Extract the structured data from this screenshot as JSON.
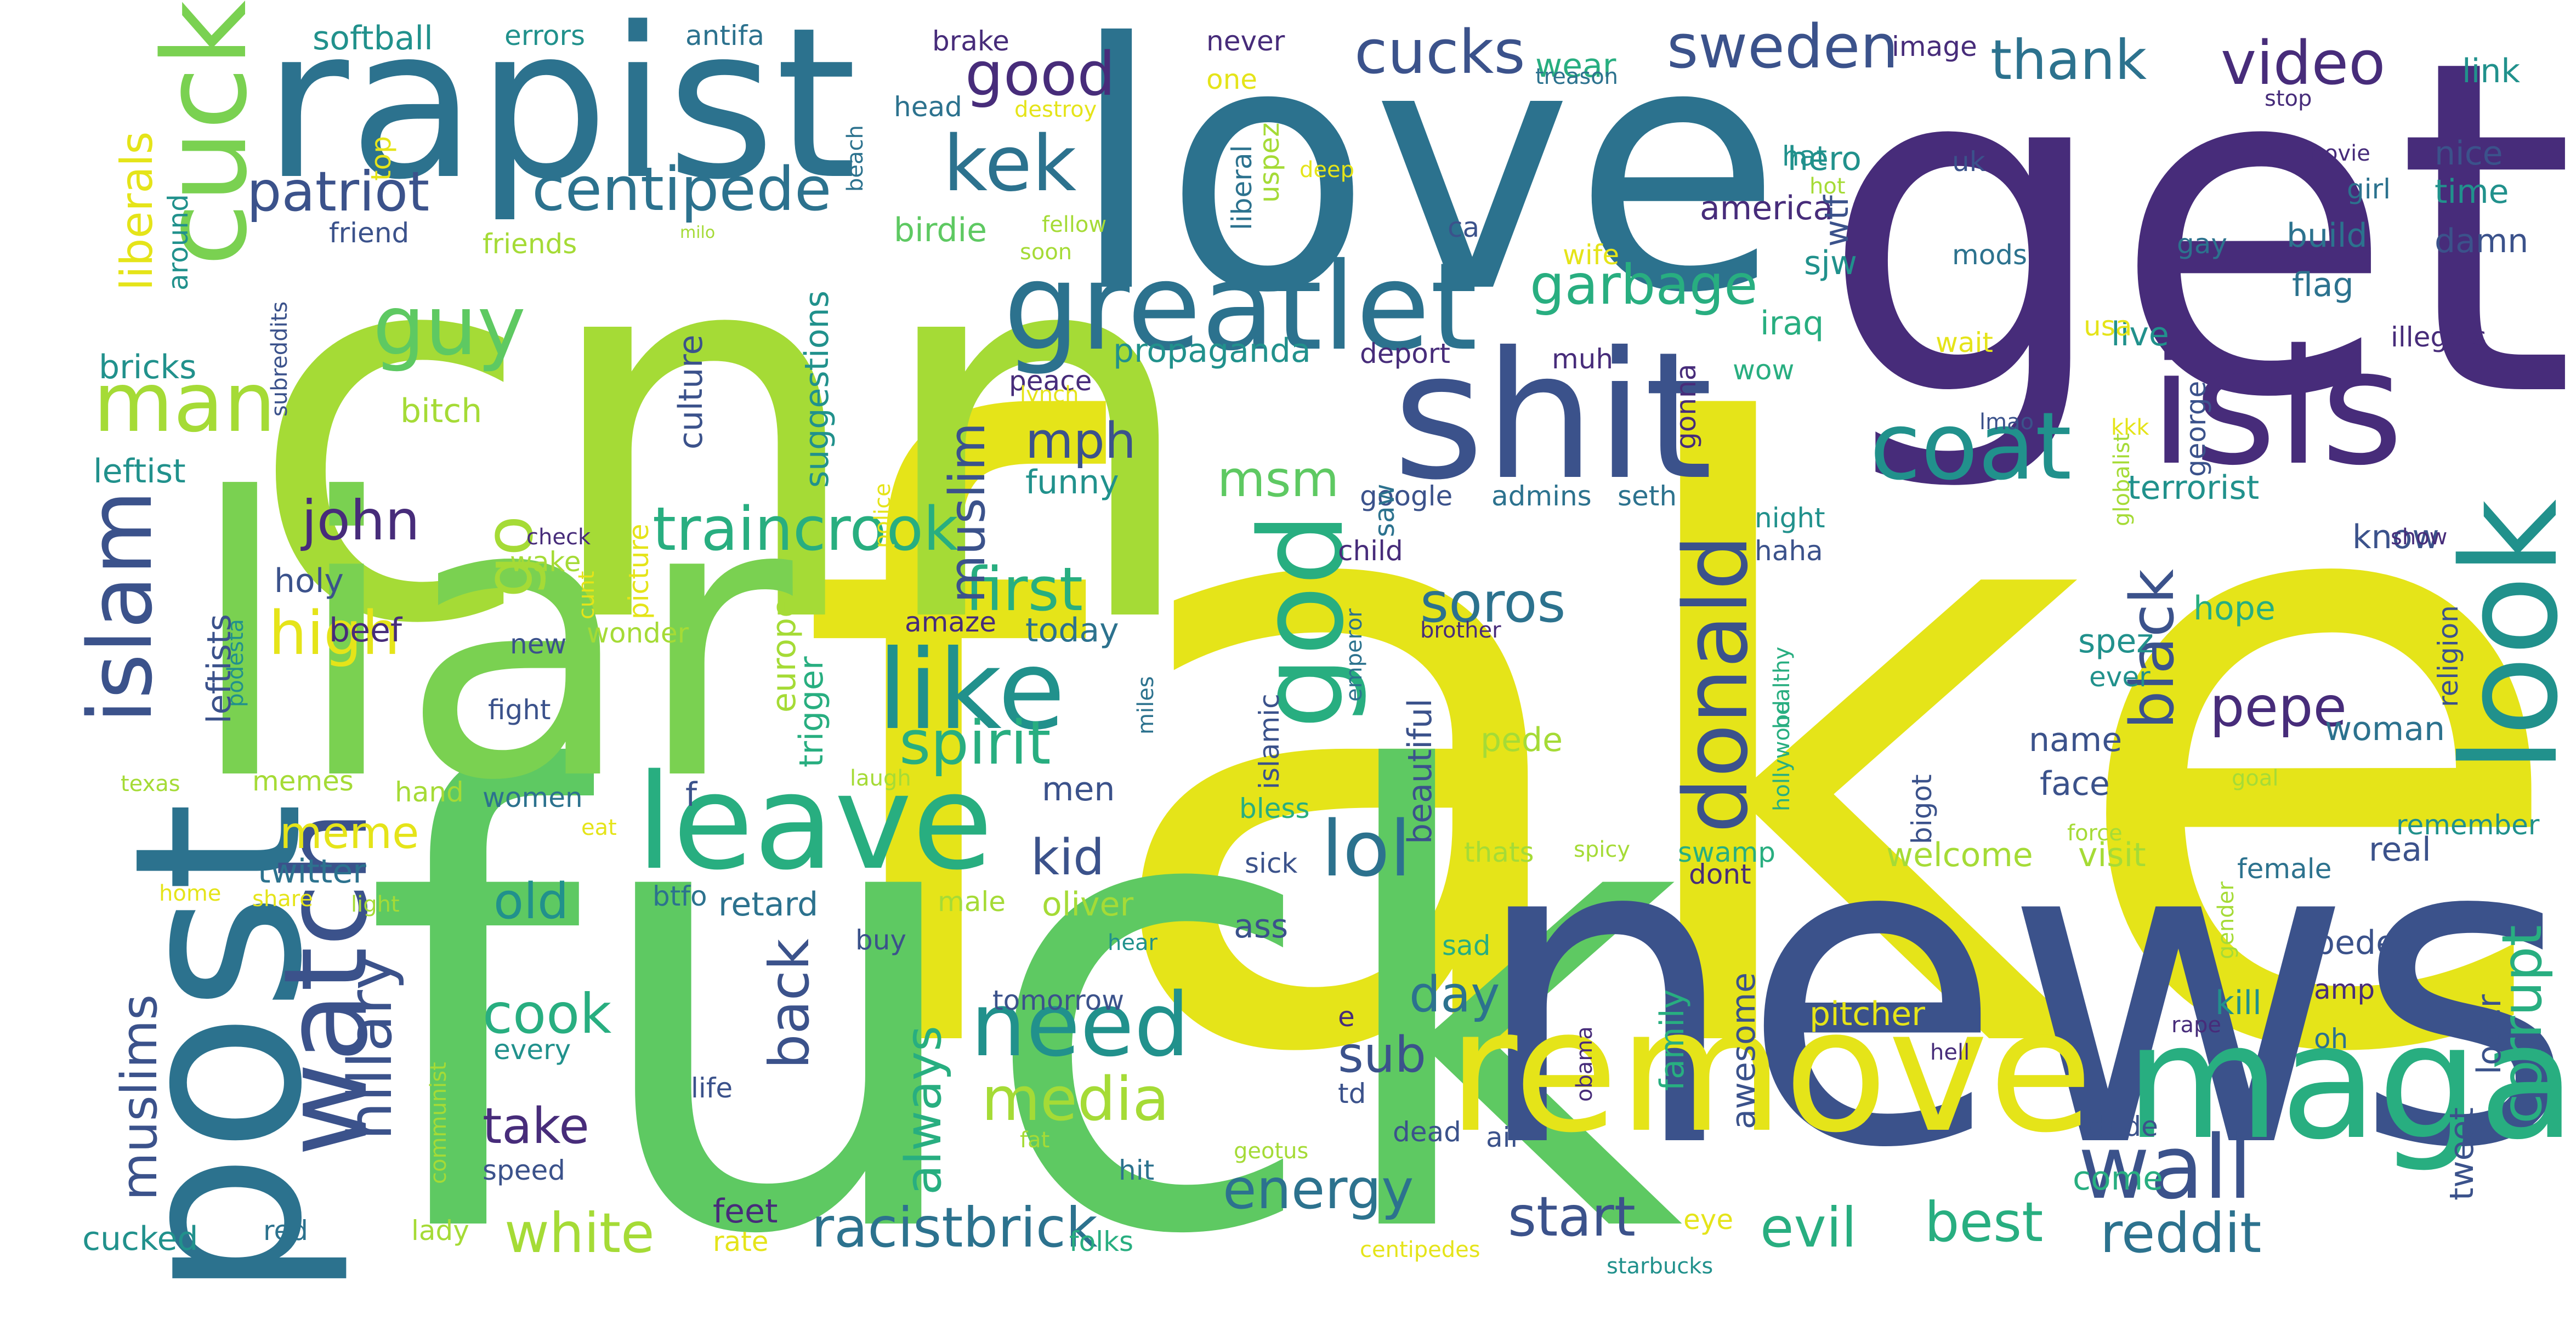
{
  "palette": {
    "dark_purple": "#472c7a",
    "indigo": "#3b528b",
    "blue_teal": "#2c728e",
    "teal": "#21918c",
    "green_teal": "#28ae80",
    "green": "#5ec962",
    "lime_green": "#7ad151",
    "yellow_green": "#a5db36",
    "yellow": "#e5e419"
  },
  "words": [
    {
      "text": "fake",
      "color": "#e5e419"
    },
    {
      "text": "fuck",
      "color": "#5ec962"
    },
    {
      "text": "cnn",
      "color": "#a5db36"
    },
    {
      "text": "get",
      "color": "#472c7a"
    },
    {
      "text": "news",
      "color": "#3b528b"
    },
    {
      "text": "love",
      "color": "#2c728e"
    },
    {
      "text": "liar",
      "color": "#7ad151"
    },
    {
      "text": "rapist",
      "color": "#2c728e"
    },
    {
      "text": "post",
      "color": "#2c728e"
    },
    {
      "text": "remove",
      "color": "#e5e419"
    },
    {
      "text": "maga",
      "color": "#28ae80"
    },
    {
      "text": "shit",
      "color": "#3b528b"
    },
    {
      "text": "isis",
      "color": "#472c7a"
    },
    {
      "text": "cuck",
      "color": "#7ad151"
    },
    {
      "text": "greatlet",
      "color": "#2c728e"
    },
    {
      "text": "leave",
      "color": "#28ae80"
    },
    {
      "text": "look",
      "color": "#21918c"
    },
    {
      "text": "god",
      "color": "#28ae80"
    },
    {
      "text": "wall",
      "color": "#3b528b"
    },
    {
      "text": "coat",
      "color": "#21918c"
    },
    {
      "text": "need",
      "color": "#21918c"
    },
    {
      "text": "watch",
      "color": "#3b528b"
    },
    {
      "text": "like",
      "color": "#21918c"
    },
    {
      "text": "donald",
      "color": "#3b528b"
    },
    {
      "text": "man",
      "color": "#a5db36"
    },
    {
      "text": "guy",
      "color": "#5ec962"
    },
    {
      "text": "islam",
      "color": "#3b528b"
    },
    {
      "text": "kek",
      "color": "#2c728e"
    },
    {
      "text": "lol",
      "color": "#2c728e"
    },
    {
      "text": "patriot",
      "color": "#3b528b"
    },
    {
      "text": "centipede",
      "color": "#2c728e"
    },
    {
      "text": "good",
      "color": "#472c7a"
    },
    {
      "text": "cucks",
      "color": "#3b528b"
    },
    {
      "text": "sweden",
      "color": "#3b528b"
    },
    {
      "text": "thank",
      "color": "#2c728e"
    },
    {
      "text": "video",
      "color": "#472c7a"
    },
    {
      "text": "garbage",
      "color": "#28ae80"
    },
    {
      "text": "high",
      "color": "#e5e419"
    },
    {
      "text": "go",
      "color": "#a5db36"
    },
    {
      "text": "john",
      "color": "#472c7a"
    },
    {
      "text": "traincrook",
      "color": "#28ae80"
    },
    {
      "text": "first",
      "color": "#28ae80"
    },
    {
      "text": "spirit",
      "color": "#28ae80"
    },
    {
      "text": "hillary",
      "color": "#3b528b"
    },
    {
      "text": "media",
      "color": "#a5db36"
    },
    {
      "text": "energy",
      "color": "#2c728e"
    },
    {
      "text": "racistbrick",
      "color": "#2c728e"
    },
    {
      "text": "white",
      "color": "#a5db36"
    },
    {
      "text": "evil",
      "color": "#28ae80"
    },
    {
      "text": "best",
      "color": "#28ae80"
    },
    {
      "text": "start",
      "color": "#3b528b"
    },
    {
      "text": "reddit",
      "color": "#2c728e"
    },
    {
      "text": "corrupt",
      "color": "#28ae80"
    },
    {
      "text": "black",
      "color": "#3b528b"
    },
    {
      "text": "pepe",
      "color": "#472c7a"
    },
    {
      "text": "soros",
      "color": "#2c728e"
    },
    {
      "text": "muslim",
      "color": "#3b528b"
    },
    {
      "text": "mph",
      "color": "#3b528b"
    },
    {
      "text": "msm",
      "color": "#5ec962"
    },
    {
      "text": "muslims",
      "color": "#3b528b"
    },
    {
      "text": "cook",
      "color": "#28ae80"
    },
    {
      "text": "take",
      "color": "#472c7a"
    },
    {
      "text": "back",
      "color": "#3b528b"
    },
    {
      "text": "always",
      "color": "#28ae80"
    },
    {
      "text": "kid",
      "color": "#3b528b"
    },
    {
      "text": "day",
      "color": "#2c728e"
    },
    {
      "text": "sub",
      "color": "#3b528b"
    },
    {
      "text": "meme",
      "color": "#e5e419"
    },
    {
      "text": "old",
      "color": "#21918c"
    },
    {
      "text": "liberals",
      "color": "#e5e419"
    },
    {
      "text": "bricks",
      "color": "#21918c"
    },
    {
      "text": "leftist",
      "color": "#21918c"
    },
    {
      "text": "holy",
      "color": "#3b528b"
    },
    {
      "text": "beef",
      "color": "#472c7a"
    },
    {
      "text": "culture",
      "color": "#3b528b"
    },
    {
      "text": "suggestions",
      "color": "#21918c"
    },
    {
      "text": "propaganda",
      "color": "#21918c"
    },
    {
      "text": "funny",
      "color": "#21918c"
    },
    {
      "text": "today",
      "color": "#2c728e"
    },
    {
      "text": "europe",
      "color": "#a5db36"
    },
    {
      "text": "trigger",
      "color": "#28ae80"
    },
    {
      "text": "birdie",
      "color": "#5ec962"
    },
    {
      "text": "america",
      "color": "#472c7a"
    },
    {
      "text": "wtf",
      "color": "#3b528b"
    },
    {
      "text": "hero",
      "color": "#21918c"
    },
    {
      "text": "hat",
      "color": "#21918c"
    },
    {
      "text": "sjw",
      "color": "#21918c"
    },
    {
      "text": "iraq",
      "color": "#28ae80"
    },
    {
      "text": "wow",
      "color": "#28ae80"
    },
    {
      "text": "build",
      "color": "#2c728e"
    },
    {
      "text": "flag",
      "color": "#2c728e"
    },
    {
      "text": "live",
      "color": "#21918c"
    },
    {
      "text": "illegals",
      "color": "#472c7a"
    },
    {
      "text": "terrorist",
      "color": "#21918c"
    },
    {
      "text": "know",
      "color": "#3b528b"
    },
    {
      "text": "hope",
      "color": "#28ae80"
    },
    {
      "text": "spez",
      "color": "#21918c"
    },
    {
      "text": "ever",
      "color": "#21918c"
    },
    {
      "text": "woman",
      "color": "#2c728e"
    },
    {
      "text": "name",
      "color": "#3b528b"
    },
    {
      "text": "face",
      "color": "#3b528b"
    },
    {
      "text": "pede",
      "color": "#a5db36"
    },
    {
      "text": "welcome",
      "color": "#a5db36"
    },
    {
      "text": "visit",
      "color": "#a5db36"
    },
    {
      "text": "real",
      "color": "#3b528b"
    },
    {
      "text": "pedes",
      "color": "#3b528b"
    },
    {
      "text": "kill",
      "color": "#21918c"
    },
    {
      "text": "pitcher",
      "color": "#e5e419"
    },
    {
      "text": "swamp",
      "color": "#28ae80"
    },
    {
      "text": "awesome",
      "color": "#3b528b"
    },
    {
      "text": "family",
      "color": "#28ae80"
    },
    {
      "text": "beautiful",
      "color": "#3b528b"
    },
    {
      "text": "twitter",
      "color": "#2c728e"
    },
    {
      "text": "women",
      "color": "#2c728e"
    },
    {
      "text": "hand",
      "color": "#a5db36"
    },
    {
      "text": "men",
      "color": "#3b528b"
    },
    {
      "text": "male",
      "color": "#a5db36"
    },
    {
      "text": "oliver",
      "color": "#a5db36"
    },
    {
      "text": "retard",
      "color": "#2c728e"
    },
    {
      "text": "btfo",
      "color": "#2c728e"
    },
    {
      "text": "buy",
      "color": "#3b528b"
    },
    {
      "text": "life",
      "color": "#3b528b"
    },
    {
      "text": "tomorrow",
      "color": "#3b528b"
    },
    {
      "text": "feet",
      "color": "#472c7a"
    },
    {
      "text": "folks",
      "color": "#28ae80"
    },
    {
      "text": "speed",
      "color": "#3b528b"
    },
    {
      "text": "every",
      "color": "#21918c"
    },
    {
      "text": "cucked",
      "color": "#21918c"
    },
    {
      "text": "red",
      "color": "#2c728e"
    },
    {
      "text": "lady",
      "color": "#a5db36"
    },
    {
      "text": "rate",
      "color": "#e5e419"
    },
    {
      "text": "softball",
      "color": "#21918c"
    },
    {
      "text": "errors",
      "color": "#21918c"
    },
    {
      "text": "antifa",
      "color": "#2c728e"
    },
    {
      "text": "brake",
      "color": "#472c7a"
    },
    {
      "text": "never",
      "color": "#472c7a"
    },
    {
      "text": "one",
      "color": "#e5e419"
    },
    {
      "text": "head",
      "color": "#2c728e"
    },
    {
      "text": "destroy",
      "color": "#e5e419"
    },
    {
      "text": "top",
      "color": "#e5e419"
    },
    {
      "text": "friend",
      "color": "#3b528b"
    },
    {
      "text": "friends",
      "color": "#a5db36"
    },
    {
      "text": "around",
      "color": "#21918c"
    },
    {
      "text": "beach",
      "color": "#2c728e"
    },
    {
      "text": "fellow",
      "color": "#a5db36"
    },
    {
      "text": "soon",
      "color": "#a5db36"
    },
    {
      "text": "milo",
      "color": "#a5db36"
    },
    {
      "text": "wear",
      "color": "#28ae80"
    },
    {
      "text": "treason",
      "color": "#2c728e"
    },
    {
      "text": "image",
      "color": "#472c7a"
    },
    {
      "text": "uspez",
      "color": "#a5db36"
    },
    {
      "text": "liberal",
      "color": "#2c728e"
    },
    {
      "text": "deep",
      "color": "#e5e419"
    },
    {
      "text": "hot",
      "color": "#a5db36"
    },
    {
      "text": "ca",
      "color": "#3b528b"
    },
    {
      "text": "uk",
      "color": "#3b528b"
    },
    {
      "text": "link",
      "color": "#21918c"
    },
    {
      "text": "stop",
      "color": "#472c7a"
    },
    {
      "text": "movie",
      "color": "#472c7a"
    },
    {
      "text": "nice",
      "color": "#3b528b"
    },
    {
      "text": "girl",
      "color": "#2c728e"
    },
    {
      "text": "time",
      "color": "#21918c"
    },
    {
      "text": "gay",
      "color": "#2c728e"
    },
    {
      "text": "damn",
      "color": "#3b528b"
    },
    {
      "text": "mods",
      "color": "#2c728e"
    },
    {
      "text": "wife",
      "color": "#e5e419"
    },
    {
      "text": "wait",
      "color": "#e5e419"
    },
    {
      "text": "usa",
      "color": "#e5e419"
    },
    {
      "text": "deport",
      "color": "#472c7a"
    },
    {
      "text": "muh",
      "color": "#472c7a"
    },
    {
      "text": "peace",
      "color": "#472c7a"
    },
    {
      "text": "lynch",
      "color": "#e5e419"
    },
    {
      "text": "gonna",
      "color": "#472c7a"
    },
    {
      "text": "george",
      "color": "#3b528b"
    },
    {
      "text": "globalist",
      "color": "#a5db36"
    },
    {
      "text": "kkk",
      "color": "#e5e419"
    },
    {
      "text": "lmao",
      "color": "#3b528b"
    },
    {
      "text": "google",
      "color": "#3b528b"
    },
    {
      "text": "admins",
      "color": "#2c728e"
    },
    {
      "text": "seth",
      "color": "#2c728e"
    },
    {
      "text": "saw",
      "color": "#2c728e"
    },
    {
      "text": "child",
      "color": "#472c7a"
    },
    {
      "text": "night",
      "color": "#21918c"
    },
    {
      "text": "haha",
      "color": "#3b528b"
    },
    {
      "text": "religion",
      "color": "#3b528b"
    },
    {
      "text": "show",
      "color": "#472c7a"
    },
    {
      "text": "bigot",
      "color": "#3b528b"
    },
    {
      "text": "healthy",
      "color": "#28ae80"
    },
    {
      "text": "hollywood",
      "color": "#28ae80"
    },
    {
      "text": "goal",
      "color": "#a5db36"
    },
    {
      "text": "force",
      "color": "#a5db36"
    },
    {
      "text": "remember",
      "color": "#21918c"
    },
    {
      "text": "female",
      "color": "#2c728e"
    },
    {
      "text": "gender",
      "color": "#a5db36"
    },
    {
      "text": "amp",
      "color": "#472c7a"
    },
    {
      "text": "oh",
      "color": "#2c728e"
    },
    {
      "text": "tweet",
      "color": "#3b528b"
    },
    {
      "text": "loser",
      "color": "#3b528b"
    },
    {
      "text": "rape",
      "color": "#472c7a"
    },
    {
      "text": "hell",
      "color": "#472c7a"
    },
    {
      "text": "dude",
      "color": "#3b528b"
    },
    {
      "text": "come",
      "color": "#28ae80"
    },
    {
      "text": "eye",
      "color": "#e5e419"
    },
    {
      "text": "starbucks",
      "color": "#21918c"
    },
    {
      "text": "air",
      "color": "#3b528b"
    },
    {
      "text": "dead",
      "color": "#3b528b"
    },
    {
      "text": "td",
      "color": "#3b528b"
    },
    {
      "text": "obama",
      "color": "#472c7a"
    },
    {
      "text": "e",
      "color": "#472c7a"
    },
    {
      "text": "sad",
      "color": "#28ae80"
    },
    {
      "text": "dont",
      "color": "#472c7a"
    },
    {
      "text": "spicy",
      "color": "#a5db36"
    },
    {
      "text": "thats",
      "color": "#a5db36"
    },
    {
      "text": "sick",
      "color": "#3b528b"
    },
    {
      "text": "bless",
      "color": "#28ae80"
    },
    {
      "text": "ass",
      "color": "#3b528b"
    },
    {
      "text": "hear",
      "color": "#21918c"
    },
    {
      "text": "hit",
      "color": "#2c728e"
    },
    {
      "text": "geotus",
      "color": "#a5db36"
    },
    {
      "text": "centipedes",
      "color": "#e5e419"
    },
    {
      "text": "emperor",
      "color": "#2c728e"
    },
    {
      "text": "islamic",
      "color": "#3b528b"
    },
    {
      "text": "brother",
      "color": "#472c7a"
    },
    {
      "text": "miles",
      "color": "#2c728e"
    },
    {
      "text": "amaze",
      "color": "#472c7a"
    },
    {
      "text": "laugh",
      "color": "#a5db36"
    },
    {
      "text": "police",
      "color": "#e5e419"
    },
    {
      "text": "cunt",
      "color": "#e5e419"
    },
    {
      "text": "check",
      "color": "#472c7a"
    },
    {
      "text": "picture",
      "color": "#e5e419"
    },
    {
      "text": "wake",
      "color": "#a5db36"
    },
    {
      "text": "wonder",
      "color": "#a5db36"
    },
    {
      "text": "fight",
      "color": "#3b528b"
    },
    {
      "text": "new",
      "color": "#3b528b"
    },
    {
      "text": "podesta",
      "color": "#21918c"
    },
    {
      "text": "leftists",
      "color": "#3b528b"
    },
    {
      "text": "memes",
      "color": "#a5db36"
    },
    {
      "text": "texas",
      "color": "#a5db36"
    },
    {
      "text": "eat",
      "color": "#e5e419"
    },
    {
      "text": "f",
      "color": "#3b528b"
    },
    {
      "text": "bitch",
      "color": "#a5db36"
    },
    {
      "text": "subreddits",
      "color": "#3b528b"
    },
    {
      "text": "home",
      "color": "#e5e419"
    },
    {
      "text": "share",
      "color": "#e5e419"
    },
    {
      "text": "light",
      "color": "#a5db36"
    },
    {
      "text": "communist",
      "color": "#a5db36"
    },
    {
      "text": "fat",
      "color": "#a5db36"
    }
  ]
}
